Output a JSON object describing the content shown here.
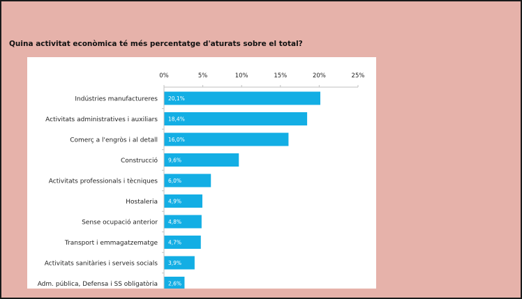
{
  "page": {
    "question": "Quina activitat econòmica té més percentatge d'aturats sobre el total?"
  },
  "colors": {
    "background": "#e6b2aa",
    "bar": "#13aee4",
    "panel": "#ffffff"
  },
  "chart_data": {
    "type": "bar",
    "orientation": "horizontal",
    "title": "",
    "xlabel": "",
    "ylabel": "",
    "xlim": [
      0,
      25
    ],
    "x_ticks": [
      "0%",
      "5%",
      "10%",
      "15%",
      "20%",
      "25%"
    ],
    "x_axis_position": "top",
    "grid": false,
    "legend": "none",
    "categories": [
      "Indústries manufactureres",
      "Activitats administratives i auxiliars",
      "Comerç a l'engròs i al detall",
      "Construcció",
      "Activitats professionals i tècniques",
      "Hostaleria",
      "Sense ocupació anterior",
      "Transport i emmagatzematge",
      "Activitats sanitàries i serveis socials",
      "Adm. pública, Defensa i SS obligatòria"
    ],
    "values": [
      20.1,
      18.4,
      16.0,
      9.6,
      6.0,
      4.9,
      4.8,
      4.7,
      3.9,
      2.6
    ],
    "data_labels": [
      "20,1%",
      "18,4%",
      "16,0%",
      "9,6%",
      "6,0%",
      "4,9%",
      "4,8%",
      "4,7%",
      "3,9%",
      "2,6%"
    ]
  }
}
